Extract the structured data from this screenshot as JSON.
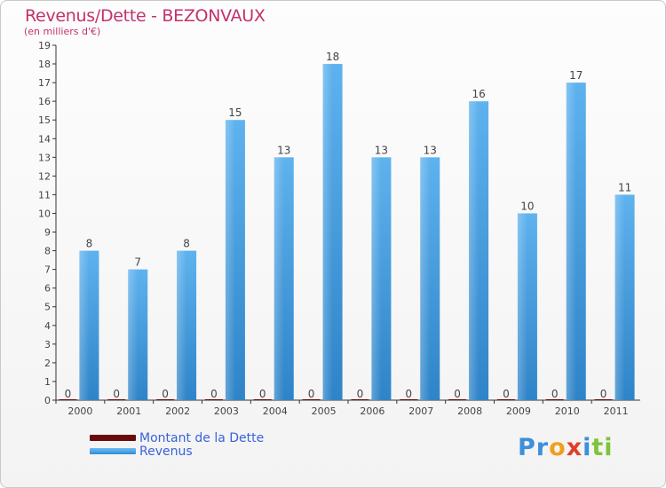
{
  "header": {
    "title": "Revenus/Dette - BEZONVAUX",
    "subtitle": "(en milliers d'€)"
  },
  "legend": {
    "items": [
      {
        "label": "Montant de la Dette",
        "color": "#6b0a0a"
      },
      {
        "label": "Revenus",
        "color": "#4aa3e6"
      }
    ]
  },
  "logo": {
    "letters": [
      "P",
      "r",
      "o",
      "x",
      "i",
      "t",
      "i"
    ],
    "colors": [
      "#3d8fdc",
      "#3d8fdc",
      "#f0a020",
      "#e0402a",
      "#3d8fdc",
      "#7cc43c",
      "#7cc43c"
    ]
  },
  "chart_data": {
    "type": "bar",
    "categories": [
      "2000",
      "2001",
      "2002",
      "2003",
      "2004",
      "2005",
      "2006",
      "2007",
      "2008",
      "2009",
      "2010",
      "2011"
    ],
    "series": [
      {
        "name": "Montant de la Dette",
        "values": [
          0,
          0,
          0,
          0,
          0,
          0,
          0,
          0,
          0,
          0,
          0,
          0
        ],
        "color": "#6b0a0a"
      },
      {
        "name": "Revenus",
        "values": [
          8,
          7,
          8,
          15,
          13,
          18,
          13,
          13,
          16,
          10,
          17,
          11
        ],
        "color": "#4aa3e6"
      }
    ],
    "y_ticks": [
      "0",
      "1",
      "2",
      "3",
      "4",
      "5",
      "6",
      "7",
      "8",
      "9",
      "10",
      "11",
      "12",
      "13",
      "14",
      "15",
      "16",
      "17",
      "18",
      "19"
    ],
    "ylim": [
      0,
      19
    ],
    "grid": false,
    "data_labels": true,
    "legend_position": "bottom-left"
  }
}
